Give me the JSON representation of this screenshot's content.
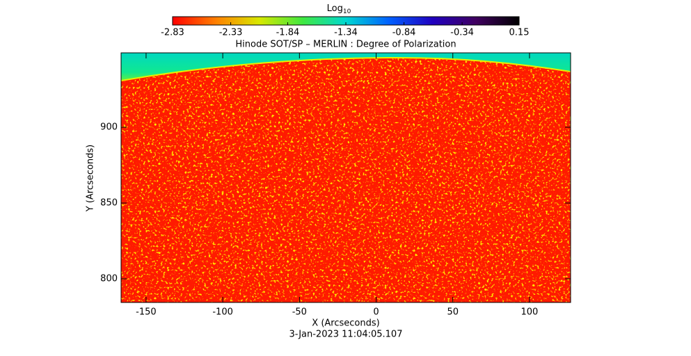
{
  "chart_data": {
    "type": "image",
    "title": "Hinode SOT/SP – MERLIN : Degree of Polarization",
    "x_label": "X (Arcseconds)",
    "y_label": "Y (Arcseconds)",
    "footer": "3-Jan-2023 11:04:05.107",
    "xlim": [
      -166.3,
      126.8
    ],
    "ylim": [
      784.4,
      949.1
    ],
    "xticks": [
      -150,
      -100,
      -50,
      0,
      50,
      100
    ],
    "yticks": [
      800,
      850,
      900
    ],
    "colorbar": {
      "label": "Log",
      "label_sub": "10",
      "clim": [
        -2.83,
        0.15
      ],
      "ticks": [
        -2.83,
        -2.33,
        -1.84,
        -1.34,
        -0.84,
        -0.34,
        0.15
      ],
      "colormap": [
        "#ff0000",
        "#ff8000",
        "#d8e800",
        "#40e840",
        "#00d8d0",
        "#0060ff",
        "#2000c0",
        "#400060",
        "#000000"
      ]
    }
  }
}
